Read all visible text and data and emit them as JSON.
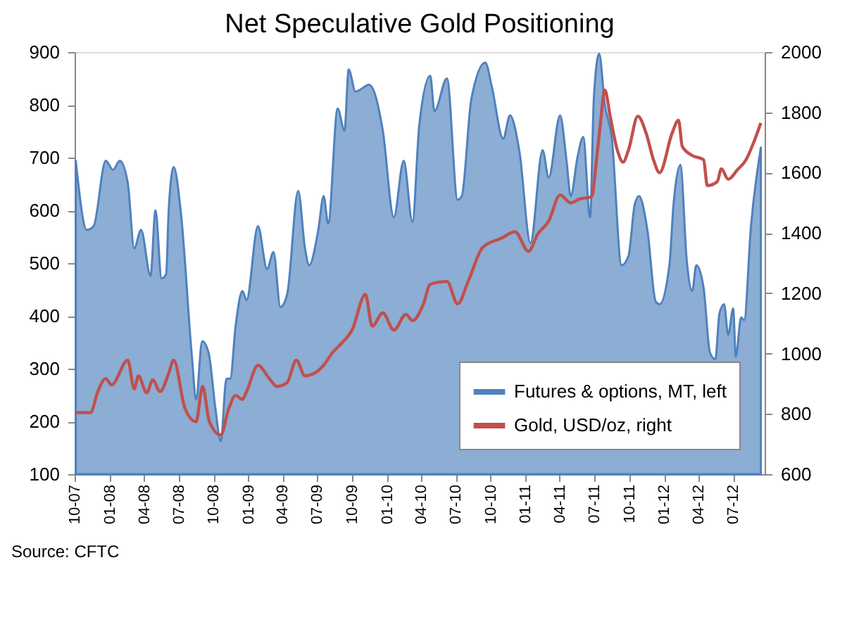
{
  "chart_data": {
    "type": "area",
    "title": "Net Speculative Gold Positioning",
    "xlim": [
      "2007-10-01",
      "2012-09-22"
    ],
    "xticks": [
      {
        "value": "2007-10",
        "label": "10-07"
      },
      {
        "value": "2008-01",
        "label": "01-08"
      },
      {
        "value": "2008-04",
        "label": "04-08"
      },
      {
        "value": "2008-07",
        "label": "07-08"
      },
      {
        "value": "2008-10",
        "label": "10-08"
      },
      {
        "value": "2009-01",
        "label": "01-09"
      },
      {
        "value": "2009-04",
        "label": "04-09"
      },
      {
        "value": "2009-07",
        "label": "07-09"
      },
      {
        "value": "2009-10",
        "label": "10-09"
      },
      {
        "value": "2010-01",
        "label": "01-10"
      },
      {
        "value": "2010-04",
        "label": "04-10"
      },
      {
        "value": "2010-07",
        "label": "07-10"
      },
      {
        "value": "2010-10",
        "label": "10-10"
      },
      {
        "value": "2011-01",
        "label": "01-11"
      },
      {
        "value": "2011-04",
        "label": "04-11"
      },
      {
        "value": "2011-07",
        "label": "07-11"
      },
      {
        "value": "2011-10",
        "label": "10-11"
      },
      {
        "value": "2012-01",
        "label": "01-12"
      },
      {
        "value": "2012-04",
        "label": "04-12"
      },
      {
        "value": "2012-07",
        "label": "07-12"
      }
    ],
    "ylim": [
      100,
      900
    ],
    "yticks": [
      100,
      200,
      300,
      400,
      500,
      600,
      700,
      800,
      900
    ],
    "y2lim": [
      600,
      2000
    ],
    "y2ticks": [
      600,
      800,
      1000,
      1200,
      1400,
      1600,
      1800,
      2000
    ],
    "grid": false,
    "legend": "bottom right",
    "annotations": [
      "Source: CFTC"
    ],
    "series": [
      {
        "name": "Futures & options, MT, left",
        "color": "#4f81bd",
        "x": [
          "2007-10-04",
          "2007-11-02",
          "2007-11-20",
          "2007-12-22",
          "2008-01-10",
          "2008-01-28",
          "2008-02-18",
          "2008-03-06",
          "2008-03-24",
          "2008-04-18",
          "2008-05-01",
          "2008-05-17",
          "2008-05-29",
          "2008-06-05",
          "2008-06-18",
          "2008-07-07",
          "2008-08-05",
          "2008-08-16",
          "2008-09-01",
          "2008-09-18",
          "2008-10-06",
          "2008-10-20",
          "2008-11-04",
          "2008-11-14",
          "2008-11-28",
          "2008-12-16",
          "2008-12-27",
          "2009-01-26",
          "2009-02-19",
          "2009-03-08",
          "2009-03-26",
          "2009-04-13",
          "2009-05-12",
          "2009-05-30",
          "2009-06-10",
          "2009-07-04",
          "2009-07-18",
          "2009-07-30",
          "2009-08-24",
          "2009-09-11",
          "2009-09-22",
          "2009-10-10",
          "2009-11-15",
          "2009-12-21",
          "2010-01-19",
          "2010-02-14",
          "2010-03-09",
          "2010-03-27",
          "2010-04-25",
          "2010-05-06",
          "2010-06-08",
          "2010-07-06",
          "2010-07-17",
          "2010-08-11",
          "2010-09-17",
          "2010-10-04",
          "2010-11-03",
          "2010-11-21",
          "2010-12-16",
          "2011-01-14",
          "2011-02-15",
          "2011-03-03",
          "2011-04-02",
          "2011-04-19",
          "2011-04-30",
          "2011-05-18",
          "2011-06-02",
          "2011-06-20",
          "2011-06-30",
          "2011-07-14",
          "2011-07-29",
          "2011-08-16",
          "2011-09-11",
          "2011-09-29",
          "2011-10-16",
          "2011-10-27",
          "2011-11-18",
          "2011-12-10",
          "2011-12-20",
          "2012-01-15",
          "2012-01-26",
          "2012-02-13",
          "2012-03-01",
          "2012-03-15",
          "2012-03-26",
          "2012-04-14",
          "2012-05-01",
          "2012-05-15",
          "2012-05-26",
          "2012-06-07",
          "2012-06-18",
          "2012-07-01",
          "2012-07-08",
          "2012-07-22",
          "2012-07-30",
          "2012-08-17",
          "2012-09-12"
        ],
        "values": [
          694,
          563,
          570,
          694,
          677,
          694,
          652,
          528,
          563,
          476,
          600,
          471,
          479,
          603,
          682,
          595,
          323,
          241,
          352,
          330,
          224,
          162,
          281,
          281,
          380,
          447,
          430,
          570,
          489,
          521,
          417,
          441,
          637,
          528,
          496,
          563,
          627,
          575,
          793,
          751,
          867,
          825,
          838,
          751,
          587,
          694,
          578,
          761,
          855,
          788,
          850,
          620,
          627,
          810,
          880,
          835,
          736,
          780,
          711,
          538,
          714,
          662,
          780,
          694,
          627,
          701,
          739,
          587,
          813,
          897,
          800,
          739,
          496,
          513,
          612,
          627,
          563,
          427,
          422,
          496,
          612,
          686,
          503,
          447,
          496,
          454,
          330,
          318,
          405,
          422,
          364,
          414,
          323,
          397,
          392,
          570,
          719
        ]
      },
      {
        "name": "Gold, USD/oz, right",
        "type": "line",
        "axis": "y2",
        "color": "#c0504d",
        "x": [
          "2007-10-04",
          "2007-11-12",
          "2007-12-01",
          "2007-12-22",
          "2008-01-06",
          "2008-02-18",
          "2008-03-06",
          "2008-03-17",
          "2008-04-08",
          "2008-04-24",
          "2008-05-13",
          "2008-06-05",
          "2008-06-18",
          "2008-07-18",
          "2008-08-16",
          "2008-09-02",
          "2008-09-20",
          "2008-10-20",
          "2008-11-10",
          "2008-11-28",
          "2008-12-16",
          "2008-12-27",
          "2009-01-26",
          "2009-02-25",
          "2009-03-17",
          "2009-04-13",
          "2009-05-07",
          "2009-05-30",
          "2009-06-24",
          "2009-07-18",
          "2009-08-11",
          "2009-09-04",
          "2009-10-01",
          "2009-11-05",
          "2009-11-23",
          "2009-12-21",
          "2010-01-19",
          "2010-02-20",
          "2010-03-09",
          "2010-04-07",
          "2010-04-25",
          "2010-06-08",
          "2010-07-06",
          "2010-08-04",
          "2010-09-10",
          "2010-10-30",
          "2010-12-04",
          "2011-01-09",
          "2011-02-02",
          "2011-03-03",
          "2011-04-02",
          "2011-04-30",
          "2011-05-24",
          "2011-06-24",
          "2011-07-07",
          "2011-07-17",
          "2011-07-29",
          "2011-08-12",
          "2011-08-31",
          "2011-09-15",
          "2011-09-29",
          "2011-10-24",
          "2011-11-15",
          "2011-12-04",
          "2011-12-20",
          "2012-01-22",
          "2012-02-08",
          "2012-02-18",
          "2012-03-15",
          "2012-04-14",
          "2012-04-24",
          "2012-05-20",
          "2012-05-31",
          "2012-06-18",
          "2012-07-12",
          "2012-08-04",
          "2012-08-24",
          "2012-09-12"
        ],
        "values": [
          804,
          804,
          874,
          917,
          896,
          978,
          883,
          926,
          870,
          913,
          874,
          935,
          978,
          817,
          774,
          891,
          774,
          730,
          817,
          861,
          848,
          874,
          961,
          917,
          891,
          904,
          978,
          926,
          935,
          961,
          1004,
          1035,
          1078,
          1196,
          1091,
          1135,
          1078,
          1130,
          1109,
          1165,
          1230,
          1239,
          1165,
          1243,
          1352,
          1383,
          1404,
          1339,
          1396,
          1439,
          1526,
          1500,
          1513,
          1520,
          1643,
          1760,
          1874,
          1787,
          1674,
          1635,
          1674,
          1787,
          1730,
          1643,
          1600,
          1730,
          1774,
          1687,
          1657,
          1643,
          1557,
          1570,
          1613,
          1578,
          1609,
          1643,
          1700,
          1765
        ]
      }
    ]
  }
}
